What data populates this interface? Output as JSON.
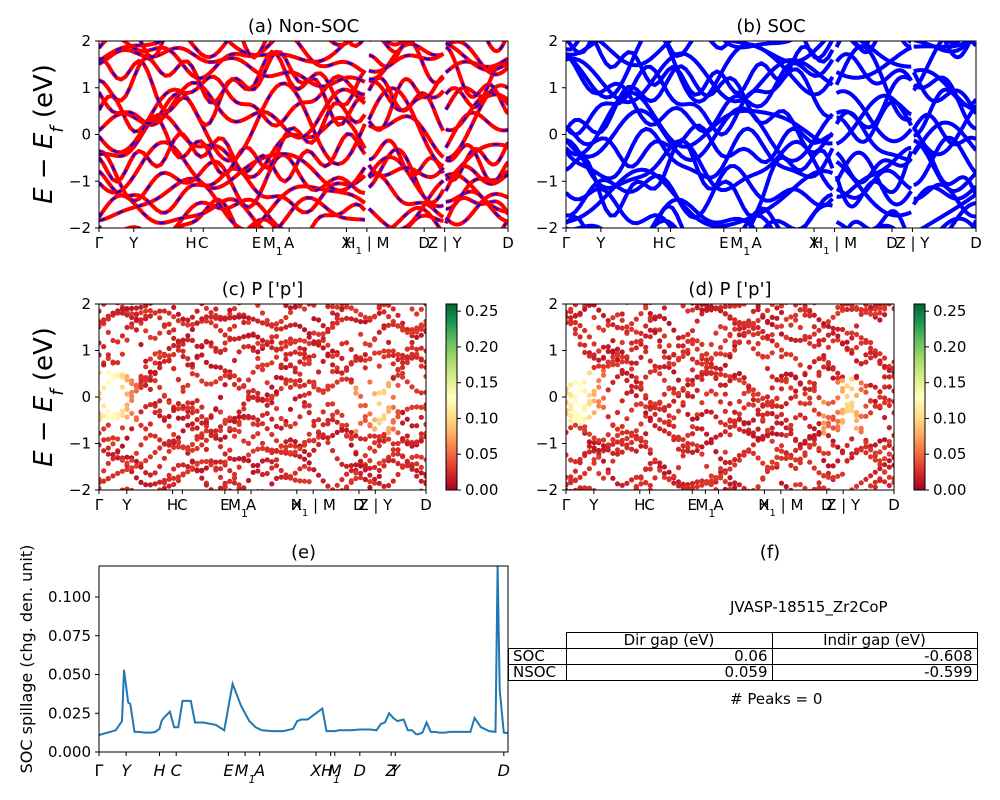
{
  "chart_data": [
    {
      "panel": "a",
      "type": "line",
      "title": "(a) Non-SOC",
      "ylabel_main": "E − E",
      "ylabel_sub": "f",
      "ylabel_unit": " (eV)",
      "ylim": [
        -2,
        2
      ],
      "yticks": [
        "2",
        "1",
        "0",
        "−1",
        "−2"
      ],
      "x_labels": [
        "Γ",
        "Y",
        "H",
        "C",
        "E",
        "M1",
        "A",
        "X",
        "H1 | M",
        "D",
        "Z | Y",
        "D"
      ],
      "series": [
        {
          "color": "#ff0000",
          "style": "solid"
        },
        {
          "color": "#0000ff",
          "style": "dashed"
        }
      ]
    },
    {
      "panel": "b",
      "type": "line",
      "title": "(b) SOC",
      "ylim": [
        -2,
        2
      ],
      "yticks": [
        "2",
        "1",
        "0",
        "−1",
        "−2"
      ],
      "x_labels": [
        "Γ",
        "Y",
        "H",
        "C",
        "E",
        "M1",
        "A",
        "X",
        "H1 | M",
        "D",
        "Z | Y",
        "D"
      ],
      "series": [
        {
          "color": "#0000ff",
          "style": "solid"
        }
      ]
    },
    {
      "panel": "c",
      "type": "scatter",
      "title": "(c)  P ['p']",
      "ylim": [
        -2,
        2
      ],
      "yticks": [
        "2",
        "1",
        "0",
        "−1",
        "−2"
      ],
      "x_labels": [
        "Γ",
        "Y",
        "H",
        "C",
        "E",
        "M1",
        "A",
        "X",
        "H1 | M",
        "D",
        "Z | Y",
        "D"
      ],
      "colorbar": {
        "cmap": "RdYlGn",
        "range": [
          0,
          0.26
        ],
        "ticks": [
          "0.00",
          "0.05",
          "0.10",
          "0.15",
          "0.20",
          "0.25"
        ]
      }
    },
    {
      "panel": "d",
      "type": "scatter",
      "title": "(d) P ['p']",
      "ylim": [
        -2,
        2
      ],
      "yticks": [
        "2",
        "1",
        "0",
        "−1",
        "−2"
      ],
      "x_labels": [
        "Γ",
        "Y",
        "H",
        "C",
        "E",
        "M1",
        "A",
        "X",
        "H1 | M",
        "D",
        "Z | Y",
        "D"
      ],
      "colorbar": {
        "cmap": "RdYlGn",
        "range": [
          0,
          0.26
        ],
        "ticks": [
          "0.00",
          "0.05",
          "0.10",
          "0.15",
          "0.20",
          "0.25"
        ]
      }
    },
    {
      "panel": "e",
      "type": "line",
      "title": "(e)",
      "ylabel": "SOC spillage (chg. den. unit)",
      "ylim": [
        0,
        0.12
      ],
      "yticks": [
        "0.000",
        "0.025",
        "0.050",
        "0.075",
        "0.100"
      ],
      "x_labels": [
        "Γ",
        "Y",
        "H",
        "C",
        "E",
        "M1",
        "A",
        "X",
        "H1",
        "M",
        "D",
        "Z",
        "Y",
        "D"
      ],
      "x": [
        0,
        8,
        11,
        12,
        14,
        15,
        17,
        19,
        22,
        25,
        27,
        29,
        30,
        31,
        34,
        36,
        38,
        40,
        44,
        46,
        48,
        50,
        56,
        60,
        64,
        68,
        72,
        75,
        78,
        83,
        88,
        90,
        93,
        95,
        97,
        100,
        101,
        103,
        105,
        107,
        109,
        111,
        113,
        115,
        117,
        119,
        121,
        125,
        130,
        133,
        135,
        137,
        139,
        141,
        143,
        146,
        148,
        150,
        152,
        153,
        155,
        157,
        159,
        161,
        163,
        166,
        168,
        170,
        172,
        174,
        176,
        178,
        180,
        183,
        187,
        190,
        191,
        192,
        194,
        196
      ],
      "values": [
        0.011,
        0.014,
        0.02,
        0.053,
        0.032,
        0.031,
        0.013,
        0.013,
        0.0125,
        0.0125,
        0.013,
        0.015,
        0.02,
        0.022,
        0.026,
        0.016,
        0.016,
        0.033,
        0.033,
        0.019,
        0.019,
        0.019,
        0.0175,
        0.014,
        0.044,
        0.03,
        0.02,
        0.016,
        0.014,
        0.0135,
        0.0135,
        0.014,
        0.015,
        0.02,
        0.021,
        0.021,
        0.022,
        0.024,
        0.026,
        0.028,
        0.0135,
        0.0135,
        0.0135,
        0.014,
        0.014,
        0.014,
        0.014,
        0.0145,
        0.0145,
        0.014,
        0.018,
        0.019,
        0.025,
        0.022,
        0.02,
        0.021,
        0.014,
        0.014,
        0.0115,
        0.0115,
        0.0125,
        0.019,
        0.013,
        0.013,
        0.0125,
        0.0125,
        0.013,
        0.013,
        0.013,
        0.013,
        0.013,
        0.013,
        0.022,
        0.016,
        0.0135,
        0.013,
        0.12,
        0.04,
        0.0125,
        0.0122
      ]
    }
  ],
  "panel_f": {
    "title": "(f)",
    "material": "JVASP-18515_Zr2CoP",
    "table": {
      "headers": [
        "Dir gap (eV)",
        "Indir gap (eV)"
      ],
      "rows": [
        {
          "label": "SOC",
          "dir": "0.06",
          "indir": "-0.608"
        },
        {
          "label": "NSOC",
          "dir": "0.059",
          "indir": "-0.599"
        }
      ]
    },
    "peaks": "# Peaks = 0"
  }
}
